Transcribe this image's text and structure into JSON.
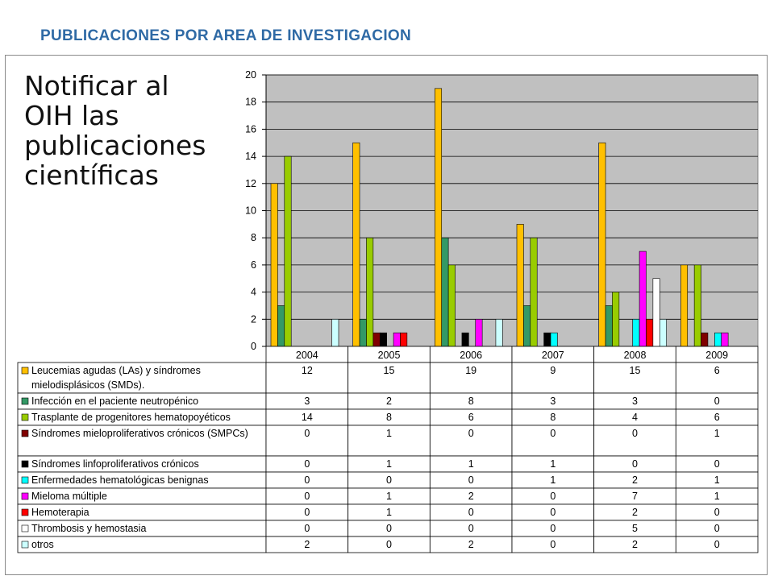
{
  "header": {
    "title": "PUBLICACIONES POR AREA DE INVESTIGACION"
  },
  "side_text": "Notificar al OIH las publicaciones científicas",
  "chart_data": {
    "type": "bar",
    "categories": [
      "2004",
      "2005",
      "2006",
      "2007",
      "2008",
      "2009"
    ],
    "ylim": [
      0,
      20
    ],
    "yticks": [
      0,
      2,
      4,
      6,
      8,
      10,
      12,
      14,
      16,
      18,
      20
    ],
    "plot_background": "#c0c0c0",
    "grid": true,
    "legend": "table-below",
    "series": [
      {
        "name": "Leucemias agudas (LAs) y síndromes mielodisplásicos (SMDs).",
        "color": "#ffc000",
        "values": [
          12,
          15,
          19,
          9,
          15,
          6
        ]
      },
      {
        "name": "Infección en el paciente neutropénico",
        "color": "#339966",
        "values": [
          3,
          2,
          8,
          3,
          3,
          0
        ]
      },
      {
        "name": "Trasplante de progenitores hematopoyéticos",
        "color": "#99cc00",
        "values": [
          14,
          8,
          6,
          8,
          4,
          6
        ]
      },
      {
        "name": "Síndromes mieloproliferativos crónicos (SMPCs)",
        "color": "#800000",
        "values": [
          0,
          1,
          0,
          0,
          0,
          1
        ]
      },
      {
        "name": "Síndromes linfoproliferativos crónicos",
        "color": "#000000",
        "values": [
          0,
          1,
          1,
          1,
          0,
          0
        ]
      },
      {
        "name": "Enfermedades hematológicas benignas",
        "color": "#00ffff",
        "values": [
          0,
          0,
          0,
          1,
          2,
          1
        ]
      },
      {
        "name": "Mieloma múltiple",
        "color": "#ff00ff",
        "values": [
          0,
          1,
          2,
          0,
          7,
          1
        ]
      },
      {
        "name": "Hemoterapia",
        "color": "#ff0000",
        "values": [
          0,
          1,
          0,
          0,
          2,
          0
        ]
      },
      {
        "name": "Thrombosis y hemostasia",
        "color": "#ffffff",
        "values": [
          0,
          0,
          0,
          0,
          5,
          0
        ]
      },
      {
        "name": "otros",
        "color": "#ccffff",
        "values": [
          2,
          0,
          2,
          0,
          2,
          0
        ]
      }
    ]
  }
}
